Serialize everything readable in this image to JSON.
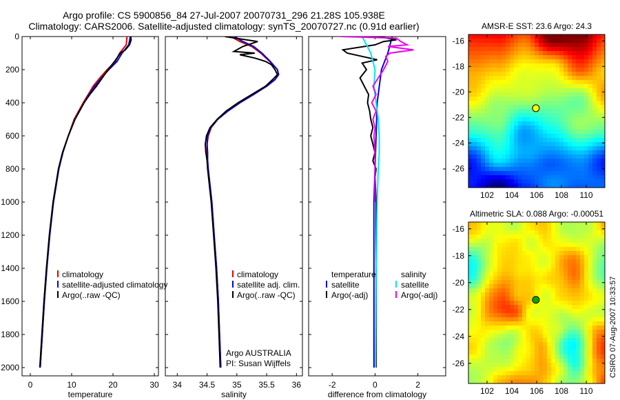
{
  "figure": {
    "title_line1": "Argo profile: CS 5900856_84 27-Jul-2007 20070731_296 21.28S 105.938E",
    "title_line2": "Climatology: CARS2006. Satellite-adjusted climatology: synTS_20070727.nc (0.91d earlier)",
    "side_label": "CSIRO 07-Aug-2007 10:33:57"
  },
  "colors": {
    "climatology": "#dd0000",
    "satellite": "#0000dd",
    "argo": "#000000",
    "sal_satellite": "#00e5ee",
    "sal_argo": "#ee00ee"
  },
  "chart_data": [
    {
      "type": "line",
      "name": "temperature-profile",
      "xlabel": "temperature",
      "ylabel": "",
      "xlim": [
        -2,
        31
      ],
      "ylim": [
        2050,
        0
      ],
      "xticks": [
        0,
        10,
        20,
        30
      ],
      "yticks": [
        0,
        200,
        400,
        600,
        800,
        1000,
        1200,
        1400,
        1600,
        1800,
        2000
      ],
      "legend": [
        "climatology",
        "satellite-adjusted climatology",
        "Argo(..raw -QC)"
      ],
      "legend_placement": "lower-middle",
      "series": [
        {
          "name": "climatology",
          "color_key": "climatology",
          "depth": [
            0,
            50,
            100,
            150,
            200,
            250,
            300,
            350,
            400,
            500,
            600,
            700,
            800,
            1000,
            1200,
            1400,
            1600,
            1800,
            2000
          ],
          "values": [
            23.4,
            23.2,
            21.6,
            20.6,
            18.6,
            16.8,
            15.2,
            14.0,
            12.8,
            10.6,
            9.2,
            7.8,
            6.9,
            5.6,
            4.7,
            4.0,
            3.4,
            2.9,
            2.4
          ]
        },
        {
          "name": "satellite-adjusted climatology",
          "color_key": "satellite",
          "depth": [
            0,
            50,
            100,
            150,
            200,
            250,
            300,
            350,
            400,
            500,
            600,
            700,
            800,
            1000,
            1200,
            1400,
            1600,
            1800,
            2000
          ],
          "values": [
            24.2,
            23.8,
            22.2,
            21.0,
            19.0,
            17.2,
            15.6,
            14.2,
            13.0,
            10.8,
            9.2,
            7.9,
            6.9,
            5.6,
            4.7,
            4.0,
            3.4,
            2.9,
            2.4
          ]
        },
        {
          "name": "Argo(..raw -QC)",
          "color_key": "argo",
          "depth": [
            0,
            20,
            50,
            80,
            100,
            150,
            200,
            250,
            300,
            350,
            400,
            500,
            600,
            700,
            800,
            1000,
            1200,
            1400,
            1600,
            1800,
            2000
          ],
          "values": [
            24.3,
            24.4,
            24.0,
            23.0,
            21.8,
            20.4,
            18.8,
            17.4,
            16.0,
            14.4,
            13.0,
            10.8,
            9.2,
            7.8,
            6.8,
            5.5,
            4.6,
            3.9,
            3.3,
            2.8,
            2.3
          ]
        }
      ]
    },
    {
      "type": "line",
      "name": "salinity-profile",
      "xlabel": "salinity",
      "ylabel": "",
      "xlim": [
        33.8,
        36.1
      ],
      "ylim": [
        2050,
        0
      ],
      "xticks": [
        34,
        34.5,
        35,
        35.5,
        36
      ],
      "legend": [
        "climatology",
        "satellite adj. clim.",
        "Argo(..raw -QC)"
      ],
      "legend_placement": "lower-middle",
      "annotations": [
        "Argo AUSTRALIA",
        "PI: Susan Wijffels"
      ],
      "series": [
        {
          "name": "climatology",
          "color_key": "climatology",
          "depth": [
            0,
            30,
            60,
            100,
            150,
            200,
            230,
            260,
            300,
            350,
            400,
            450,
            500,
            550,
            600,
            650,
            700,
            750,
            800,
            900,
            1000,
            1200,
            1400,
            1600,
            1800,
            2000
          ],
          "values": [
            34.9,
            35.05,
            35.25,
            35.4,
            35.55,
            35.68,
            35.7,
            35.64,
            35.5,
            35.28,
            35.05,
            34.85,
            34.68,
            34.57,
            34.52,
            34.5,
            34.5,
            34.51,
            34.52,
            34.55,
            34.58,
            34.62,
            34.66,
            34.69,
            34.71,
            34.73
          ]
        },
        {
          "name": "satellite adj. clim.",
          "color_key": "satellite",
          "depth": [
            0,
            30,
            60,
            100,
            150,
            200,
            230,
            260,
            300,
            350,
            400,
            450,
            500,
            550,
            600,
            650,
            700,
            750,
            800,
            900,
            1000,
            1200,
            1400,
            1600,
            1800,
            2000
          ],
          "values": [
            34.96,
            35.1,
            35.28,
            35.42,
            35.56,
            35.68,
            35.7,
            35.64,
            35.5,
            35.28,
            35.05,
            34.85,
            34.68,
            34.56,
            34.51,
            34.5,
            34.51,
            34.51,
            34.52,
            34.55,
            34.58,
            34.62,
            34.66,
            34.69,
            34.71,
            34.73
          ]
        },
        {
          "name": "Argo(..raw -QC)",
          "color_key": "argo",
          "depth": [
            0,
            30,
            60,
            90,
            100,
            110,
            130,
            150,
            170,
            200,
            230,
            260,
            300,
            350,
            400,
            450,
            500,
            550,
            600,
            650,
            700,
            750,
            800,
            900,
            1000,
            1200,
            1400,
            1600,
            1800,
            2000
          ],
          "values": [
            34.8,
            35.35,
            35.1,
            34.95,
            35.3,
            35.05,
            35.3,
            35.48,
            35.58,
            35.64,
            35.68,
            35.6,
            35.48,
            35.25,
            35.02,
            34.82,
            34.67,
            34.55,
            34.49,
            34.47,
            34.48,
            34.5,
            34.51,
            34.54,
            34.57,
            34.61,
            34.65,
            34.68,
            34.7,
            34.72
          ]
        }
      ]
    },
    {
      "type": "line",
      "name": "difference-profile",
      "xlabel": "difference from climatology",
      "ylabel": "",
      "xlim": [
        -3.1,
        3.3
      ],
      "ylim": [
        2050,
        0
      ],
      "xticks": [
        -2,
        0,
        2
      ],
      "legend": [
        "temperature",
        "satellite",
        "Argo(-adj)",
        "salinity",
        "satellite",
        "Argo(-adj)"
      ],
      "legend_placement": "lower-middle",
      "series": [
        {
          "name": "temperature satellite",
          "color_key": "satellite",
          "depth": [
            0,
            100,
            200,
            300,
            400,
            600,
            800,
            1000,
            1200,
            1400,
            1600,
            1800,
            2000
          ],
          "values": [
            0.8,
            0.6,
            0.3,
            0.2,
            0.1,
            0.05,
            0.0,
            -0.05,
            -0.05,
            -0.05,
            -0.05,
            -0.05,
            -0.05
          ]
        },
        {
          "name": "temperature Argo(-adj)",
          "color_key": "argo",
          "depth": [
            0,
            20,
            30,
            50,
            80,
            100,
            120,
            140,
            160,
            200,
            250,
            300,
            350,
            400,
            450,
            500,
            550,
            600,
            650,
            700,
            750,
            800,
            850,
            900,
            1000,
            1200,
            1400,
            1600,
            1800,
            2000
          ],
          "values": [
            0.15,
            1.0,
            0.4,
            0.0,
            -1.5,
            -1.3,
            -0.6,
            0.1,
            -0.6,
            -0.4,
            -0.7,
            -0.5,
            -0.3,
            -0.35,
            -0.25,
            -0.2,
            -0.1,
            -0.2,
            -0.1,
            0.0,
            -0.1,
            0.05,
            0.0,
            0.02,
            0.05,
            0.05,
            0.05,
            0.05,
            0.05,
            0.05
          ]
        },
        {
          "name": "salinity satellite",
          "color_key": "sal_satellite",
          "depth": [
            0,
            100,
            200,
            300,
            400,
            500,
            600,
            700,
            800,
            1000,
            1400,
            2000
          ],
          "values": [
            -0.6,
            -0.2,
            0.0,
            -0.05,
            0.05,
            0.15,
            0.2,
            0.2,
            0.15,
            0.1,
            0.05,
            0.02
          ]
        },
        {
          "name": "salinity Argo(-adj)",
          "color_key": "sal_argo",
          "depth": [
            0,
            10,
            30,
            50,
            60,
            80,
            100,
            120,
            150,
            200,
            300,
            350,
            400,
            450,
            500,
            550,
            600,
            700,
            800,
            900,
            1000
          ],
          "values": [
            -1.6,
            1.0,
            1.2,
            1.5,
            0.6,
            1.8,
            0.7,
            0.5,
            0.6,
            0.4,
            -0.1,
            0.05,
            -0.15,
            0.05,
            -0.1,
            0.0,
            -0.05,
            0.0,
            0.0,
            0.0,
            0.0
          ]
        }
      ]
    },
    {
      "type": "heatmap",
      "name": "sst-map",
      "title": "AMSR-E SST: 23.6  Argo: 24.3",
      "xlim": [
        100.5,
        111.5
      ],
      "ylim": [
        -27.5,
        -15.5
      ],
      "xticks": [
        102,
        104,
        106,
        108,
        110
      ],
      "yticks": [
        -16,
        -18,
        -20,
        -22,
        -24,
        -26
      ],
      "marker": {
        "lon": 105.938,
        "lat": -21.28
      }
    },
    {
      "type": "heatmap",
      "name": "sla-map",
      "title": "Altimetric SLA: 0.088  Argo: -0.00051",
      "xlim": [
        100.5,
        111.5
      ],
      "ylim": [
        -27.5,
        -15.5
      ],
      "xticks": [
        102,
        104,
        106,
        108,
        110
      ],
      "yticks": [
        -16,
        -18,
        -20,
        -22,
        -24,
        -26
      ],
      "marker": {
        "lon": 105.938,
        "lat": -21.28
      }
    }
  ]
}
